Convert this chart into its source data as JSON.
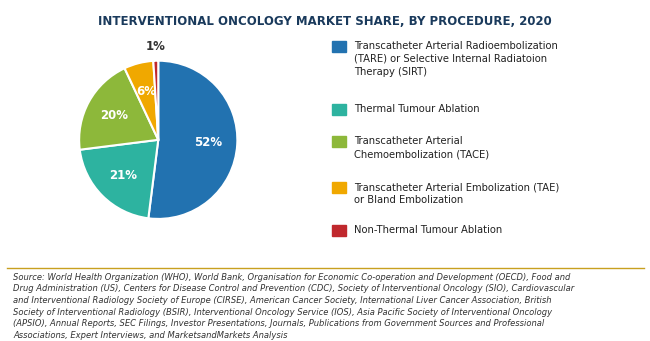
{
  "title": "INTERVENTIONAL ONCOLOGY MARKET SHARE, BY PROCEDURE, 2020",
  "slices": [
    52,
    21,
    20,
    6,
    1
  ],
  "pct_labels": [
    "52%",
    "21%",
    "20%",
    "6%",
    "1%"
  ],
  "colors": [
    "#2272b0",
    "#2db3a0",
    "#8db83a",
    "#f0a800",
    "#c0282d"
  ],
  "legend_labels": [
    "Transcatheter Arterial Radioembolization\n(TARE) or Selective Internal Radiatoion\nTherapy (SIRT)",
    "Thermal Tumour Ablation",
    "Transcatheter Arterial\nChemoembolization (TACE)",
    "Transcatheter Arterial Embolization (TAE)\nor Bland Embolization",
    "Non-Thermal Tumour Ablation"
  ],
  "source_text": "Source: World Health Organization (WHO), World Bank, Organisation for Economic Co-operation and Development (OECD), Food and\nDrug Administration (US), Centers for Disease Control and Prevention (CDC), Society of Interventional Oncology (SIO), Cardiovascular\nand Interventional Radiology Society of Europe (CIRSE), American Cancer Society, International Liver Cancer Association, British\nSociety of Interventional Radiology (BSIR), Interventional Oncology Service (IOS), Asia Pacific Society of Interventional Oncology\n(APSIO), Annual Reports, SEC Filings, Investor Presentations, Journals, Publications from Government Sources and Professional\nAssociations, Expert Interviews, and MarketsandMarkets Analysis",
  "title_color": "#1a3a5c",
  "background_color": "#ffffff",
  "startangle": 90,
  "label_fontsize": 8.5,
  "legend_fontsize": 7.2,
  "title_fontsize": 8.5,
  "source_fontsize": 6.0
}
